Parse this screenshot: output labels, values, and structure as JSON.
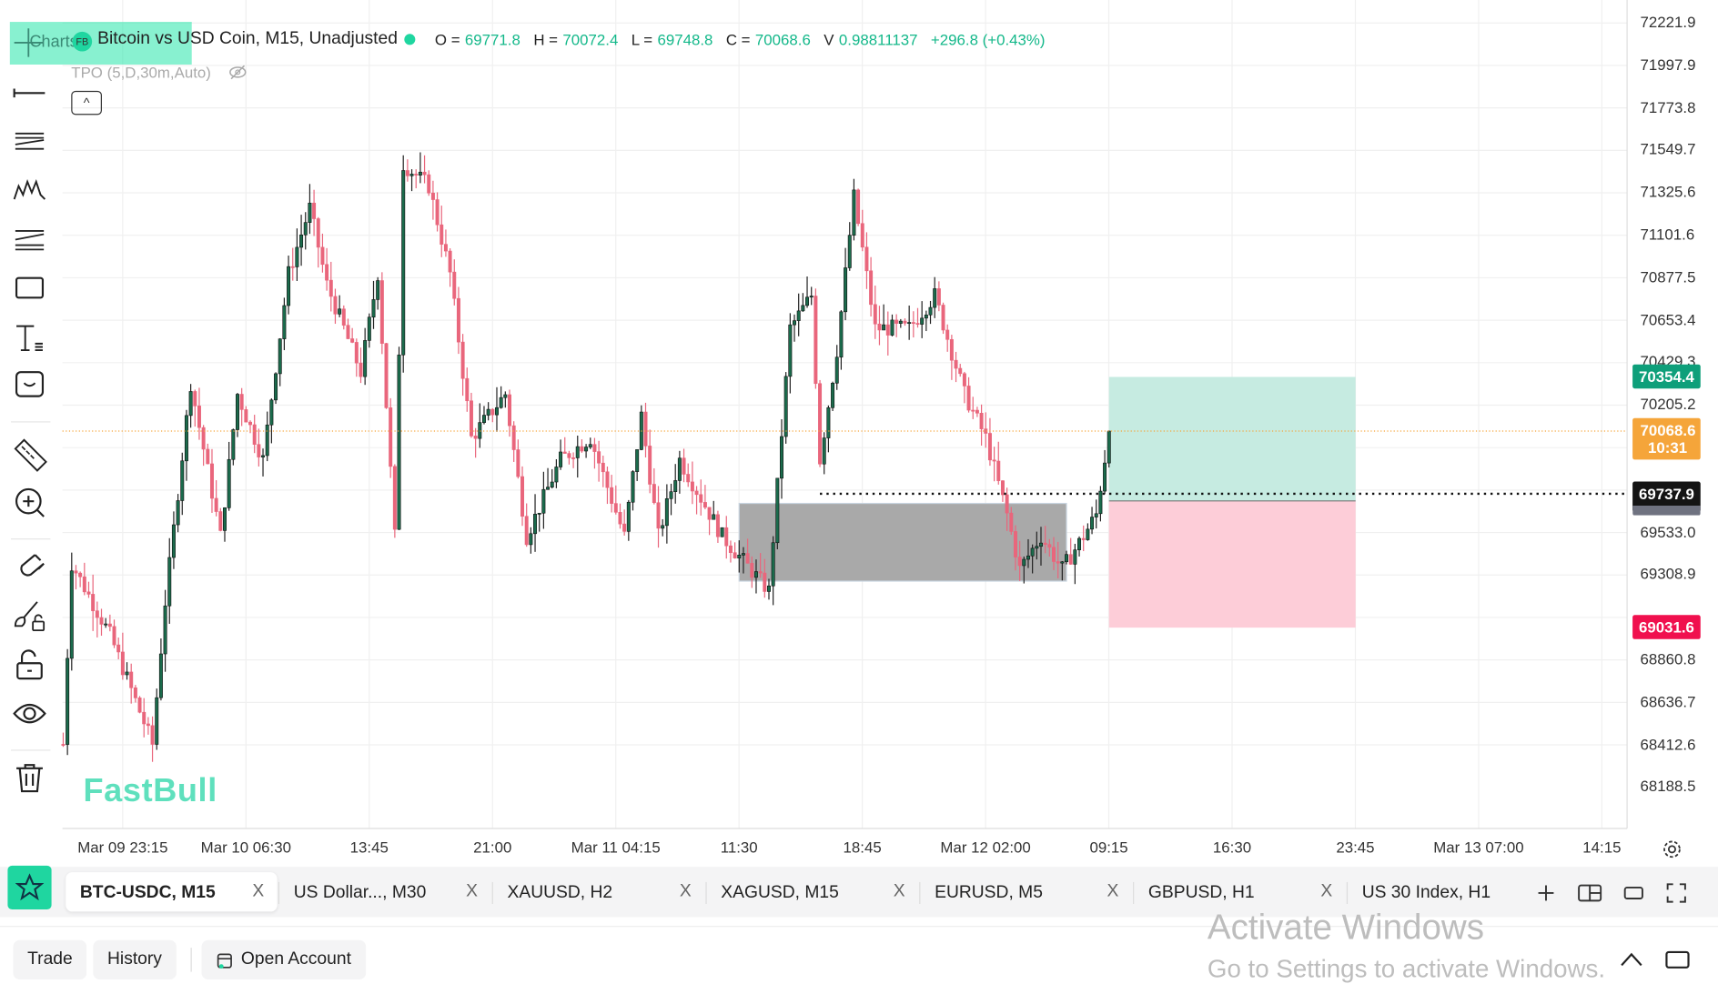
{
  "header": {
    "charts_label": "Charts",
    "coin_badge": "FB",
    "title": "Bitcoin vs USD Coin, M15, Unadjusted",
    "ohlc": {
      "o_label": "O =",
      "o": "69771.8",
      "h_label": "H =",
      "h": "70072.4",
      "l_label": "L =",
      "l": "69748.8",
      "c_label": "C =",
      "c": "70068.6",
      "v_label": "V",
      "v": "0.98811137",
      "change": "+296.8 (+0.43%)"
    },
    "indicator": "TPO (5,D,30m,Auto)",
    "collapse_icon": "^"
  },
  "toolbar": [
    "crosshair-icon",
    "horizontal-ray-icon",
    "parallel-channel-icon",
    "pattern-icon",
    "fib-icon",
    "rectangle-icon",
    "text-icon",
    "emoji-icon",
    "ruler-icon",
    "zoom-in-icon",
    "magnet-icon",
    "brush-lock-icon",
    "unlock-icon",
    "eye-icon",
    "trash-icon"
  ],
  "watermark_logo": "FastBull",
  "colors": {
    "up": "#1b6b4c",
    "down": "#e9667c",
    "accent": "#1fd6a0",
    "profit": "#c6ebe1",
    "loss": "#fdcdd8",
    "current": "#f5a53a",
    "tp": "#0e9f7a",
    "sl": "#f0104e"
  },
  "chart_data": {
    "type": "candlestick",
    "interval": "M15",
    "y_ticks": [
      "72221.9",
      "71997.9",
      "71773.8",
      "71549.7",
      "71325.6",
      "71101.6",
      "70877.5",
      "70653.4",
      "70429.3",
      "70205.2",
      "69533.0",
      "69308.9",
      "68860.8",
      "68636.7",
      "68412.6",
      "68188.5"
    ],
    "ylim": [
      68188.5,
      72221.9
    ],
    "x_ticks": [
      "Mar 09 23:15",
      "Mar 10 06:30",
      "13:45",
      "21:00",
      "Mar 11 04:15",
      "11:30",
      "18:45",
      "Mar 12 02:00",
      "09:15",
      "16:30",
      "23:45",
      "Mar 13 07:00",
      "14:15"
    ],
    "grid": true,
    "price_path": [
      [
        "09 19:45",
        68416
      ],
      [
        "09 20:15",
        69369
      ],
      [
        "09 22:30",
        68994
      ],
      [
        "10 01:00",
        68416
      ],
      [
        "10 01:45",
        69167
      ],
      [
        "10 03:15",
        70322
      ],
      [
        "10 05:00",
        69514
      ],
      [
        "10 06:00",
        70264
      ],
      [
        "10 07:30",
        69918
      ],
      [
        "10 09:00",
        70900
      ],
      [
        "10 10:15",
        71246
      ],
      [
        "10 11:15",
        70842
      ],
      [
        "10 13:15",
        70380
      ],
      [
        "10 14:15",
        70900
      ],
      [
        "10 15:15",
        69514
      ],
      [
        "10 15:45",
        71477
      ],
      [
        "10 17:15",
        71362
      ],
      [
        "10 18:30",
        70900
      ],
      [
        "10 19:45",
        70033
      ],
      [
        "10 21:45",
        70264
      ],
      [
        "10 23:00",
        69514
      ],
      [
        "11 01:00",
        69918
      ],
      [
        "11 02:45",
        70033
      ],
      [
        "11 04:45",
        69514
      ],
      [
        "11 05:45",
        70149
      ],
      [
        "11 06:45",
        69514
      ],
      [
        "11 08:00",
        69918
      ],
      [
        "11 10:30",
        69514
      ],
      [
        "11 13:15",
        69225
      ],
      [
        "11 14:30",
        70611
      ],
      [
        "11 15:45",
        70784
      ],
      [
        "11 16:15",
        69918
      ],
      [
        "11 17:15",
        70495
      ],
      [
        "11 18:15",
        71304
      ],
      [
        "11 19:30",
        70611
      ],
      [
        "11 21:30",
        70611
      ],
      [
        "11 23:00",
        70784
      ],
      [
        "12 00:45",
        70264
      ],
      [
        "12 02:00",
        70033
      ],
      [
        "12 03:15",
        69629
      ],
      [
        "12 04:00",
        69340
      ],
      [
        "12 05:15",
        69514
      ],
      [
        "12 06:30",
        69340
      ],
      [
        "12 07:45",
        69514
      ],
      [
        "12 08:30",
        69629
      ],
      [
        "12 09:15",
        70068.6
      ]
    ],
    "current_price": {
      "value": "70068.6",
      "countdown": "10:31"
    },
    "horizontal_line": {
      "value": "69737.9",
      "from": "11 16:15"
    },
    "zone": {
      "from": "11 11:30",
      "to": "12 06:45",
      "top": 69687,
      "bottom": 69277
    },
    "position": {
      "from": "12 09:15",
      "to": "12 23:45",
      "take_profit": "70354.4",
      "entry": 69700,
      "stop_loss": "69031.6"
    }
  },
  "tabs": [
    {
      "label": "BTC-USDC, M15",
      "active": true
    },
    {
      "label": "US Dollar..., M30"
    },
    {
      "label": "XAUUSD, H2"
    },
    {
      "label": "XAGUSD, M15"
    },
    {
      "label": "EURUSD, M5"
    },
    {
      "label": "GBPUSD, H1"
    },
    {
      "label": "US 30 Index, H1"
    }
  ],
  "tab_close": "X",
  "bottom": {
    "trade": "Trade",
    "history": "History",
    "open_account": "Open Account"
  },
  "os_watermark": {
    "line1": "Activate Windows",
    "line2": "Go to Settings to activate Windows."
  }
}
